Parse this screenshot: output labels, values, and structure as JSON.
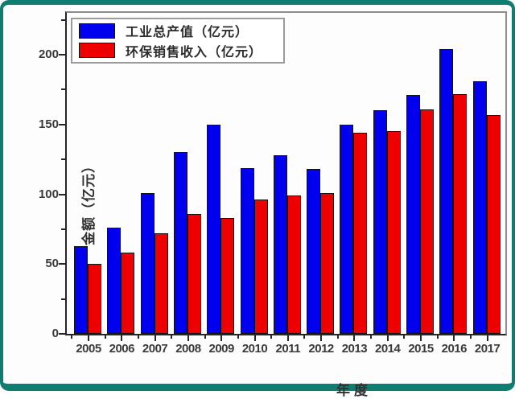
{
  "frame": {
    "border_color": "#0f7e71",
    "inner_background": "#fdfdfd"
  },
  "chart_data": {
    "type": "bar",
    "title": "",
    "categories": [
      "2005",
      "2006",
      "2007",
      "2008",
      "2009",
      "2010",
      "2011",
      "2012",
      "2013",
      "2014",
      "2015",
      "2016",
      "2017"
    ],
    "series": [
      {
        "name": "工业总产值（亿元）",
        "color": "#0000ee",
        "values": [
          63,
          76,
          101,
          130,
          150,
          119,
          128,
          118,
          150,
          160,
          171,
          204,
          181
        ]
      },
      {
        "name": "环保销售收入（亿元）",
        "color": "#ee0000",
        "values": [
          50,
          58,
          72,
          86,
          83,
          96,
          99,
          101,
          144,
          145,
          161,
          172,
          157
        ]
      }
    ],
    "xlabel": "年度",
    "ylabel": "金额（亿元）",
    "ylim": [
      0,
      230
    ],
    "yticks_major": [
      0,
      50,
      100,
      150,
      200
    ],
    "yticks_minor": [
      25,
      75,
      125,
      175,
      225
    ],
    "grid": false,
    "legend_position": "top-left",
    "bar_edge_color": "#141414",
    "axis_text_color": "#3a3a3a"
  }
}
